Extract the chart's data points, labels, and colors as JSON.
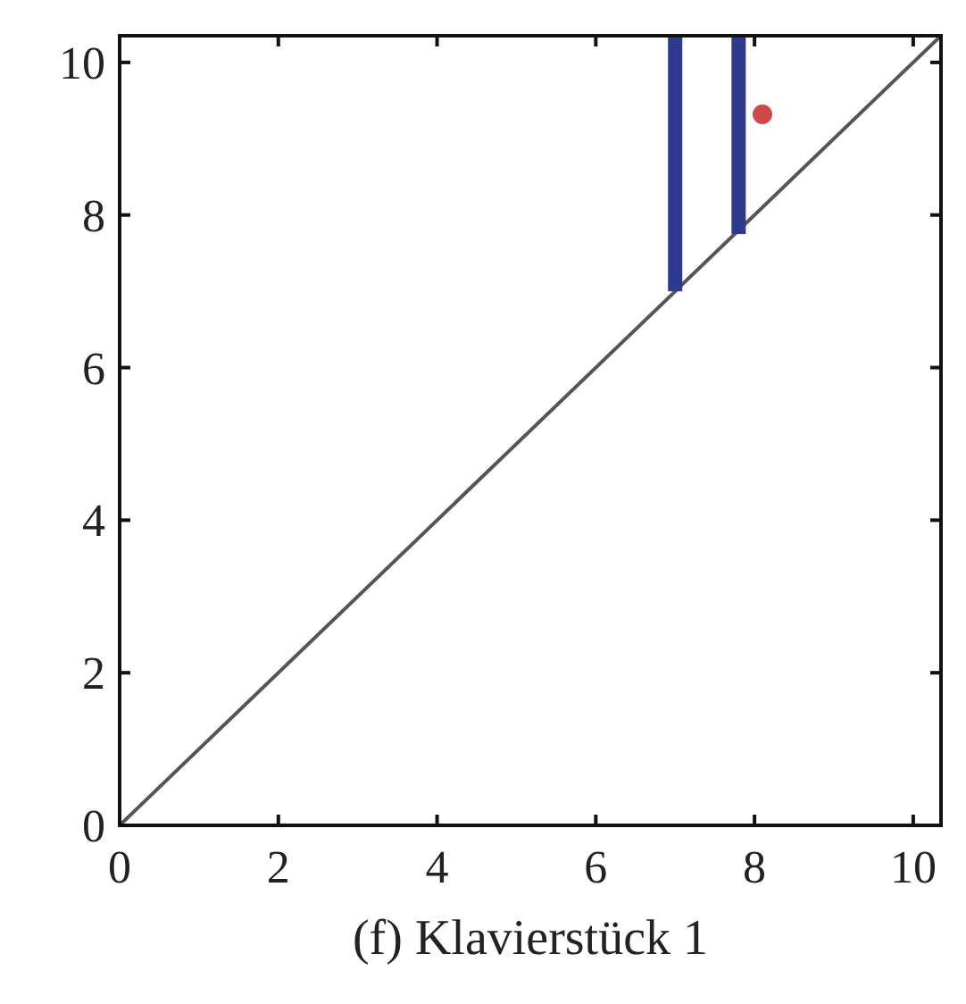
{
  "chart_data": {
    "type": "scatter",
    "title": "(f) Klavierstück 1",
    "xlim": [
      0,
      10.35
    ],
    "ylim": [
      0,
      10.35
    ],
    "xticks": [
      0,
      2,
      4,
      6,
      8,
      10
    ],
    "yticks": [
      0,
      2,
      4,
      6,
      8,
      10
    ],
    "series": [
      {
        "type": "line",
        "color": "#555555",
        "x": [
          0,
          10.35
        ],
        "values": [
          0,
          10.35
        ]
      },
      {
        "type": "bar",
        "color": "#2e3a8c",
        "x": [
          7.0,
          7.8
        ],
        "base": [
          7.0,
          7.75
        ],
        "values": [
          3.35,
          2.6
        ]
      },
      {
        "color": "#d04848",
        "x": [
          8.1
        ],
        "values": [
          9.32
        ]
      }
    ]
  }
}
